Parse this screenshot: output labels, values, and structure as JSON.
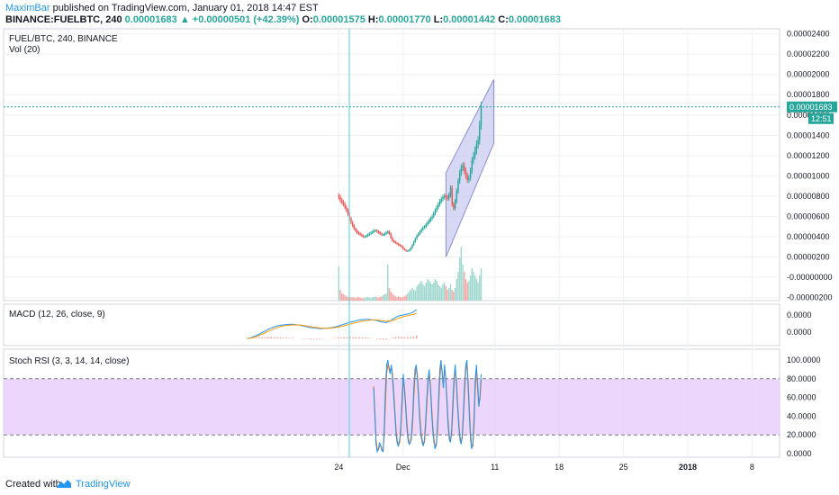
{
  "header": {
    "author": "MaximBar",
    "published": " published on TradingView.com, January 01, 2018 14:47 EST",
    "symbol": "BINANCE:FUELBTC, 240",
    "price": "0.00001683",
    "change": "+0.00000501 (+42.39%)",
    "o_label": "O:",
    "o_value": "0.00001575",
    "h_label": "H:",
    "h_value": "0.00001770",
    "l_label": "L:",
    "l_value": "0.00001442",
    "c_label": "C:",
    "c_value": "0.00001683"
  },
  "panes": {
    "main_title": "FUEL/BTC, 240, BINANCE",
    "vol_title": "Vol (20)",
    "macd_title": "MACD (12, 26, close, 9)",
    "rsi_title": "Stoch RSI (3, 3, 14, 14, close)"
  },
  "price_badge": "0.00001683",
  "time_badge": "12:51",
  "footer": {
    "created": "Created with",
    "brand": "TradingView"
  },
  "colors": {
    "up": "#26a69a",
    "down": "#ef5350",
    "vol_up": "#9fd8cf",
    "vol_down": "#f4a9a7",
    "channel_fill": "#c5c8f0",
    "channel_line": "#8b8fd6",
    "macd": "#2196f3",
    "signal": "#ff9800",
    "rsi_k": "#2196f3",
    "rsi_d": "#ff6d00",
    "rsi_band": "#e7c8fb",
    "badge": "#26a69a"
  },
  "chart_data": [
    {
      "type": "candlestick",
      "name": "FUEL/BTC, 240, BINANCE",
      "y_ticks": [
        "0.00002400",
        "0.00002200",
        "0.00002000",
        "0.00001800",
        "0.00001600",
        "0.00001400",
        "0.00001200",
        "0.00001000",
        "0.00000800",
        "0.00000600",
        "0.00000400",
        "0.00000200",
        "-0.00000000",
        "-0.00000200"
      ],
      "ylim": [
        -2.3e-06,
        2.45e-05
      ],
      "x_ticks": [
        "24",
        "Dec",
        "11",
        "18",
        "25",
        "2018",
        "8"
      ],
      "x_tick_days": [
        0,
        7,
        17,
        24,
        31,
        38,
        45
      ],
      "x_range_days": [
        -36.5,
        48
      ],
      "start_day": 0,
      "step_days": 0.1667,
      "closes": [
        7.9e-06,
        7.6e-06,
        7.4e-06,
        7.2e-06,
        6.9e-06,
        6.6e-06,
        6.2e-06,
        5.8e-06,
        5.4e-06,
        5.1e-06,
        4.8e-06,
        4.6e-06,
        4.4e-06,
        4.3e-06,
        4.2e-06,
        4.1e-06,
        4e-06,
        4e-06,
        4.1e-06,
        4.2e-06,
        4.3e-06,
        4.4e-06,
        4.5e-06,
        4.6e-06,
        4.6e-06,
        4.5e-06,
        4.4e-06,
        4.3e-06,
        4.2e-06,
        4.2e-06,
        4.3e-06,
        4.4e-06,
        4.5e-06,
        4.3e-06,
        3.9e-06,
        3.6e-06,
        3.5e-06,
        3.4e-06,
        3.3e-06,
        3.2e-06,
        3.1e-06,
        3e-06,
        2.8e-06,
        2.7e-06,
        2.6e-06,
        2.6e-06,
        2.7e-06,
        2.9e-06,
        3.2e-06,
        3.5e-06,
        3.8e-06,
        4.1e-06,
        4.3e-06,
        4.5e-06,
        4.7e-06,
        4.9e-06,
        5e-06,
        5.2e-06,
        5.4e-06,
        5.6e-06,
        5.8e-06,
        6e-06,
        6.3e-06,
        6.6e-06,
        6.9e-06,
        7.2e-06,
        7.5e-06,
        7.7e-06,
        7.9e-06,
        8e-06,
        7.9e-06,
        7.8e-06,
        8.1e-06,
        8.8e-06,
        7.2e-06,
        6.8e-06,
        7.5e-06,
        8.5e-06,
        9.5e-06,
        1.03e-05,
        1.08e-05,
        1.1e-05,
        1.05e-05,
        1e-05,
        9.6e-06,
        9.8e-06,
        1.05e-05,
        1.15e-05,
        1.2e-05,
        1.25e-05,
        1.31e-05,
        1.35e-05,
        1.5e-05,
        1.68e-05
      ]
    },
    {
      "type": "bar",
      "name": "Vol (20)",
      "values": [
        0.95,
        0.3,
        0.2,
        0.18,
        0.15,
        0.12,
        0.1,
        0.08,
        0.1,
        0.09,
        0.08,
        0.07,
        0.09,
        0.1,
        0.08,
        0.07,
        0.06,
        0.08,
        0.09,
        0.1,
        0.08,
        0.07,
        0.09,
        0.1,
        0.11,
        0.09,
        0.08,
        0.1,
        0.12,
        0.15,
        0.18,
        0.2,
        1.0,
        0.35,
        0.25,
        0.2,
        0.15,
        0.12,
        0.1,
        0.12,
        0.1,
        0.09,
        0.1,
        0.12,
        0.15,
        0.2,
        0.25,
        0.3,
        0.35,
        0.3,
        0.28,
        0.4,
        0.45,
        0.5,
        0.55,
        0.45,
        0.4,
        0.5,
        0.6,
        0.55,
        0.5,
        0.45,
        0.5,
        0.6,
        0.55,
        0.45,
        0.4,
        0.35,
        0.45,
        0.5,
        0.4,
        0.3,
        0.35,
        0.45,
        0.3,
        0.25,
        0.35,
        0.6,
        0.8,
        1.2,
        1.5,
        1.0,
        0.8,
        0.6,
        0.5,
        0.55,
        0.7,
        0.9,
        0.8,
        0.7,
        0.6,
        0.5,
        0.7,
        0.9
      ]
    },
    {
      "type": "line",
      "name": "MACD (12, 26, close, 9)",
      "y_ticks": [
        "0.0000",
        "0.0000"
      ],
      "macd": [
        0,
        0.02,
        0.05,
        0.09,
        0.13,
        0.18,
        0.22,
        0.27,
        0.31,
        0.34,
        0.37,
        0.39,
        0.4,
        0.41,
        0.42,
        0.42,
        0.41,
        0.4,
        0.38,
        0.36,
        0.34,
        0.32,
        0.31,
        0.3,
        0.29,
        0.29,
        0.3,
        0.31,
        0.32,
        0.34,
        0.36,
        0.39,
        0.42,
        0.45,
        0.48,
        0.5,
        0.52,
        0.54,
        0.55,
        0.56,
        0.56,
        0.55,
        0.54,
        0.52,
        0.5,
        0.48,
        0.47,
        0.5,
        0.56,
        0.62,
        0.66,
        0.68,
        0.7,
        0.72,
        0.74,
        0.78,
        0.85
      ],
      "signal": [
        0,
        0.01,
        0.03,
        0.06,
        0.09,
        0.13,
        0.17,
        0.21,
        0.25,
        0.29,
        0.32,
        0.35,
        0.37,
        0.38,
        0.39,
        0.4,
        0.4,
        0.4,
        0.39,
        0.38,
        0.36,
        0.35,
        0.33,
        0.32,
        0.31,
        0.3,
        0.3,
        0.3,
        0.31,
        0.32,
        0.33,
        0.35,
        0.37,
        0.4,
        0.42,
        0.45,
        0.47,
        0.49,
        0.51,
        0.52,
        0.53,
        0.54,
        0.54,
        0.54,
        0.53,
        0.52,
        0.51,
        0.51,
        0.53,
        0.56,
        0.59,
        0.62,
        0.65,
        0.67,
        0.69,
        0.71,
        0.74
      ]
    },
    {
      "type": "line",
      "name": "Stoch RSI (3, 3, 14, 14, close)",
      "y_ticks": [
        "100.0000",
        "80.0000",
        "60.0000",
        "40.0000",
        "20.0000",
        "0.0000"
      ],
      "ylim": [
        0,
        100
      ],
      "bands": [
        20,
        80
      ],
      "k": [
        70,
        40,
        10,
        2,
        5,
        12,
        8,
        3,
        2,
        30,
        70,
        95,
        100,
        90,
        85,
        95,
        80,
        60,
        40,
        20,
        10,
        8,
        15,
        30,
        60,
        85,
        70,
        50,
        30,
        15,
        10,
        12,
        20,
        40,
        70,
        90,
        95,
        80,
        60,
        35,
        20,
        12,
        8,
        15,
        35,
        60,
        80,
        90,
        70,
        45,
        25,
        12,
        5,
        10,
        30,
        60,
        90,
        100,
        85,
        70,
        95,
        80,
        55,
        30,
        15,
        12,
        25,
        55,
        80,
        95,
        75,
        50,
        30,
        15,
        10,
        20,
        45,
        75,
        95,
        100,
        70,
        40,
        15,
        5,
        10,
        40,
        80,
        95,
        70,
        50,
        60,
        85
      ],
      "d": [
        72,
        45,
        15,
        5,
        4,
        8,
        9,
        5,
        3,
        20,
        55,
        85,
        95,
        93,
        88,
        92,
        85,
        66,
        45,
        25,
        14,
        9,
        12,
        24,
        50,
        75,
        72,
        55,
        35,
        20,
        12,
        11,
        16,
        32,
        60,
        82,
        92,
        85,
        65,
        42,
        25,
        15,
        10,
        12,
        28,
        52,
        74,
        86,
        75,
        52,
        30,
        16,
        8,
        8,
        22,
        50,
        80,
        95,
        88,
        74,
        88,
        82,
        60,
        36,
        20,
        13,
        20,
        45,
        72,
        90,
        80,
        56,
        35,
        19,
        12,
        16,
        38,
        66,
        88,
        96,
        78,
        48,
        22,
        8,
        8,
        30,
        68,
        90,
        76,
        56,
        58,
        78
      ]
    }
  ]
}
